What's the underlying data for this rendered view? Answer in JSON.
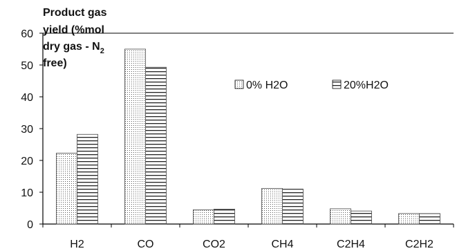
{
  "chart_data": {
    "type": "bar",
    "title_lines": [
      "Product gas",
      "yield (%mol",
      "dry gas - N",
      "free)"
    ],
    "title_subscript": "2",
    "categories": [
      "H2",
      "CO",
      "CO2",
      "CH4",
      "C2H4",
      "C2H2"
    ],
    "series": [
      {
        "name": "0% H2O",
        "values": [
          22.3,
          55.0,
          4.5,
          11.2,
          4.8,
          3.3
        ],
        "pattern": "dots"
      },
      {
        "name": "20%H2O",
        "values": [
          28.2,
          49.3,
          4.7,
          11.0,
          4.1,
          3.3
        ],
        "pattern": "hlines"
      }
    ],
    "ylim": [
      0,
      60
    ],
    "yticks": [
      "0",
      "10",
      "20",
      "30",
      "40",
      "50",
      "60"
    ],
    "grid": false,
    "legend_position": "top-right",
    "colors": {
      "axis": "#000000",
      "bar_fill": "#ffffff",
      "pattern": "#333333"
    }
  }
}
